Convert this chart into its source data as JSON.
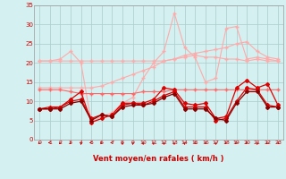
{
  "x": [
    0,
    1,
    2,
    3,
    4,
    5,
    6,
    7,
    8,
    9,
    10,
    11,
    12,
    13,
    14,
    15,
    16,
    17,
    18,
    19,
    20,
    21,
    22,
    23
  ],
  "series": [
    {
      "color": "#ffaaaa",
      "lw": 0.8,
      "marker": "+",
      "ms": 3.0,
      "values": [
        13.5,
        13.5,
        13.5,
        13.5,
        13.5,
        13.5,
        14.0,
        15.0,
        16.0,
        17.0,
        18.0,
        19.0,
        20.5,
        21.0,
        22.0,
        22.5,
        23.0,
        23.5,
        24.0,
        25.0,
        25.5,
        23.0,
        21.5,
        21.0
      ]
    },
    {
      "color": "#ffaaaa",
      "lw": 0.8,
      "marker": "+",
      "ms": 3.0,
      "values": [
        20.5,
        20.5,
        21.0,
        23.0,
        20.0,
        4.5,
        6.0,
        7.0,
        9.5,
        11.0,
        16.0,
        20.0,
        23.0,
        33.0,
        24.0,
        21.5,
        15.0,
        16.0,
        29.0,
        29.5,
        21.0,
        21.5,
        21.0,
        20.5
      ]
    },
    {
      "color": "#ffaaaa",
      "lw": 0.8,
      "marker": "+",
      "ms": 3.0,
      "values": [
        20.5,
        20.5,
        20.5,
        20.5,
        20.5,
        20.5,
        20.5,
        20.5,
        20.5,
        20.5,
        20.5,
        20.5,
        20.5,
        21.0,
        21.5,
        22.0,
        21.5,
        21.5,
        21.0,
        21.0,
        20.5,
        21.0,
        20.5,
        20.5
      ]
    },
    {
      "color": "#ff6666",
      "lw": 0.8,
      "marker": "+",
      "ms": 3.0,
      "values": [
        13.0,
        13.0,
        13.0,
        12.5,
        12.0,
        12.0,
        12.0,
        12.0,
        12.0,
        12.0,
        12.5,
        12.5,
        12.5,
        13.0,
        13.0,
        13.0,
        13.0,
        13.0,
        13.0,
        13.0,
        13.0,
        13.0,
        13.0,
        13.0
      ]
    },
    {
      "color": "#dd0000",
      "lw": 0.9,
      "marker": "D",
      "ms": 2.0,
      "values": [
        8.0,
        8.5,
        8.5,
        10.5,
        12.5,
        4.5,
        5.5,
        6.5,
        9.5,
        9.5,
        9.5,
        10.5,
        13.5,
        13.0,
        9.5,
        9.0,
        9.5,
        5.5,
        6.0,
        13.5,
        15.5,
        13.5,
        14.5,
        9.0
      ]
    },
    {
      "color": "#dd0000",
      "lw": 0.9,
      "marker": "D",
      "ms": 2.0,
      "values": [
        8.0,
        8.0,
        8.5,
        10.0,
        10.5,
        5.5,
        6.5,
        6.0,
        9.0,
        9.5,
        9.0,
        10.0,
        11.5,
        12.5,
        8.5,
        8.5,
        8.5,
        5.0,
        5.5,
        10.0,
        13.5,
        13.0,
        9.0,
        8.5
      ]
    },
    {
      "color": "#880000",
      "lw": 0.9,
      "marker": "D",
      "ms": 2.0,
      "values": [
        8.0,
        8.0,
        8.0,
        9.5,
        10.0,
        5.0,
        6.5,
        6.0,
        8.5,
        9.0,
        9.0,
        9.5,
        11.0,
        12.0,
        8.0,
        8.0,
        8.0,
        5.5,
        5.0,
        9.5,
        12.5,
        12.5,
        8.5,
        8.5
      ]
    }
  ],
  "xlabel": "Vent moyen/en rafales ( km/h )",
  "xlim": [
    -0.5,
    23.5
  ],
  "ylim": [
    0,
    35
  ],
  "yticks": [
    0,
    5,
    10,
    15,
    20,
    25,
    30,
    35
  ],
  "bg_color": "#d4f0f0",
  "grid_color": "#aacccc",
  "label_color": "#cc0000",
  "xlabel_color": "#cc0000"
}
